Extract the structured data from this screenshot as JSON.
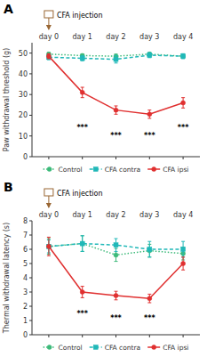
{
  "chart_data": [
    {
      "type": "line",
      "title": "A",
      "categories": [
        "day 0",
        "day 1",
        "day 2",
        "day 3",
        "day 4"
      ],
      "series": [
        {
          "name": "Control",
          "color": "#3DBA7A",
          "line_style": "dotted",
          "marker": "circle",
          "values": [
            49.5,
            48.8,
            48.5,
            49.5,
            48.5
          ],
          "errors": [
            0.8,
            0.8,
            1.0,
            0.8,
            0.8
          ]
        },
        {
          "name": "CFA contra",
          "color": "#20B8B8",
          "line_style": "dashed",
          "marker": "square",
          "values": [
            48.0,
            47.5,
            47.0,
            49.0,
            48.5
          ],
          "errors": [
            1.2,
            1.2,
            1.8,
            1.2,
            1.2
          ]
        },
        {
          "name": "CFA ipsi",
          "color": "#E03030",
          "line_style": "solid",
          "marker": "circle",
          "values": [
            48.5,
            31.0,
            22.5,
            20.5,
            26.0
          ],
          "errors": [
            1.2,
            2.5,
            2.0,
            2.0,
            2.5
          ]
        }
      ],
      "y_label": "Paw withdrawal threshold (g)",
      "ylim": [
        0,
        55
      ],
      "yticks": [
        0,
        10,
        20,
        30,
        40,
        50
      ],
      "grid": false,
      "legend": "bottom",
      "annotations": [
        {
          "x": "day 0",
          "text": "CFA injection"
        },
        {
          "x": "day 1",
          "y": 13,
          "text": "***"
        },
        {
          "x": "day 2",
          "y": 9,
          "text": "***"
        },
        {
          "x": "day 3",
          "y": 9,
          "text": "***"
        },
        {
          "x": "day 4",
          "y": 13,
          "text": "***"
        }
      ]
    },
    {
      "type": "line",
      "title": "B",
      "categories": [
        "day 0",
        "day 1",
        "day 2",
        "day 3",
        "day 4"
      ],
      "series": [
        {
          "name": "Control",
          "color": "#3DBA7A",
          "line_style": "dotted",
          "marker": "circle",
          "values": [
            6.2,
            6.4,
            5.6,
            5.9,
            5.7
          ],
          "errors": [
            0.55,
            0.55,
            0.45,
            0.45,
            0.45
          ]
        },
        {
          "name": "CFA contra",
          "color": "#20B8B8",
          "line_style": "dashed",
          "marker": "square",
          "values": [
            6.2,
            6.4,
            6.3,
            6.0,
            6.0
          ],
          "errors": [
            0.45,
            0.55,
            0.45,
            0.55,
            0.55
          ]
        },
        {
          "name": "CFA ipsi",
          "color": "#E03030",
          "line_style": "solid",
          "marker": "circle",
          "values": [
            6.2,
            3.0,
            2.75,
            2.55,
            5.0
          ],
          "errors": [
            0.65,
            0.4,
            0.3,
            0.3,
            0.45
          ]
        }
      ],
      "y_label": "Thermal withdrawal latency (s)",
      "ylim": [
        0,
        8
      ],
      "yticks": [
        0,
        1,
        2,
        3,
        4,
        5,
        6,
        7,
        8
      ],
      "grid": false,
      "legend": "bottom",
      "annotations": [
        {
          "x": "day 0",
          "text": "CFA injection"
        },
        {
          "x": "day 1",
          "y": 1.3,
          "text": "***"
        },
        {
          "x": "day 2",
          "y": 1.0,
          "text": "***"
        },
        {
          "x": "day 3",
          "y": 1.0,
          "text": "***"
        }
      ]
    }
  ]
}
